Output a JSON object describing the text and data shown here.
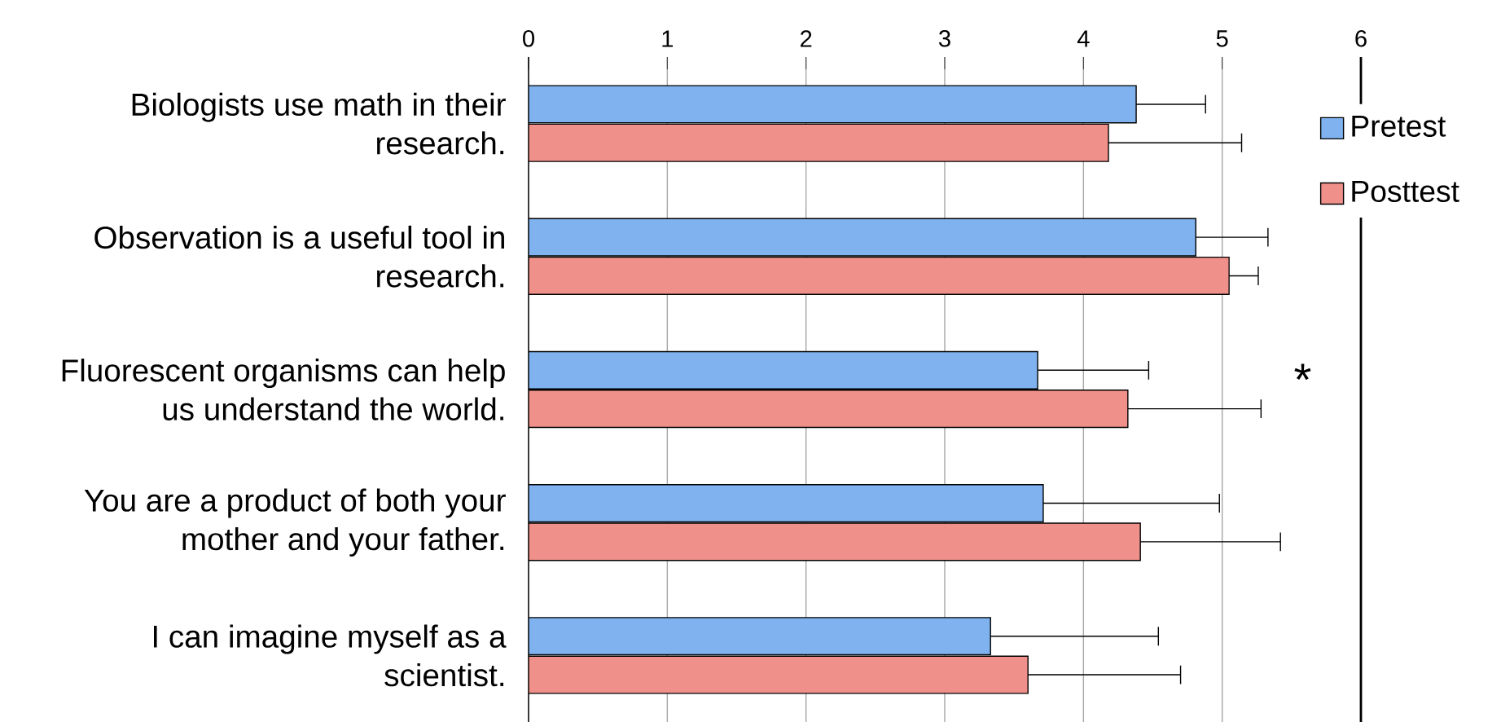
{
  "chart_data": {
    "type": "bar",
    "orientation": "horizontal",
    "categories": [
      "Biologists use math in their research.",
      "Observation is a useful tool in research.",
      "Fluorescent organisms can help us understand the world.",
      "You are a product of both your mother and your father.",
      "I can imagine myself as a scientist."
    ],
    "series": [
      {
        "name": "Pretest",
        "color": "#7fb2ee",
        "values": [
          4.38,
          4.81,
          3.67,
          3.71,
          3.33
        ],
        "errors": [
          [
            4.38,
            4.88
          ],
          [
            4.81,
            5.33
          ],
          [
            3.67,
            4.47
          ],
          [
            3.71,
            4.98
          ],
          [
            3.33,
            4.54
          ]
        ]
      },
      {
        "name": "Posttest",
        "color": "#f0908a",
        "values": [
          4.18,
          5.05,
          4.32,
          4.41,
          3.6
        ],
        "errors": [
          [
            4.18,
            5.14
          ],
          [
            5.05,
            5.26
          ],
          [
            4.32,
            5.28
          ],
          [
            4.41,
            5.42
          ],
          [
            3.6,
            4.7
          ]
        ]
      }
    ],
    "xlim": [
      0,
      6
    ],
    "xticks": [
      0,
      1,
      2,
      3,
      4,
      5,
      6
    ],
    "grid": "x",
    "legend": "right",
    "annotations": [
      "*"
    ]
  }
}
